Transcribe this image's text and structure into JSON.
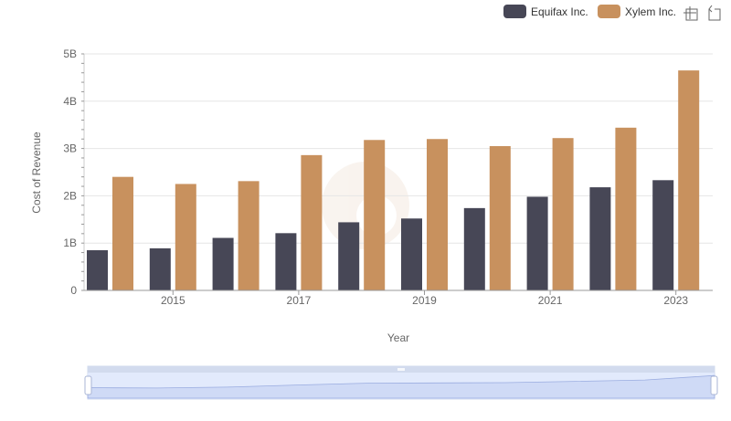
{
  "colors": {
    "equifax": "#474756",
    "xylem": "#c8915e",
    "grid": "#e6e6e6",
    "axis": "#999999"
  },
  "toolbar": {
    "icons": [
      "crosshair-zoom-icon",
      "zoom-reset-icon"
    ]
  },
  "chart_data": {
    "type": "bar",
    "xlabel": "Year",
    "ylabel": "Cost of Revenue",
    "categories": [
      "2014",
      "2015",
      "2016",
      "2017",
      "2018",
      "2019",
      "2020",
      "2021",
      "2022",
      "2023"
    ],
    "x_tick_labels": [
      "2015",
      "2017",
      "2019",
      "2021",
      "2023"
    ],
    "y_tick_labels": [
      "0",
      "1B",
      "2B",
      "3B",
      "4B",
      "5B"
    ],
    "ylim": [
      0,
      5000000000
    ],
    "grid": true,
    "legend_position": "top-right",
    "series": [
      {
        "name": "Equifax Inc.",
        "color": "#474756",
        "values": [
          850000000,
          890000000,
          1110000000,
          1210000000,
          1440000000,
          1520000000,
          1740000000,
          1980000000,
          2180000000,
          2330000000
        ]
      },
      {
        "name": "Xylem Inc.",
        "color": "#c8915e",
        "values": [
          2400000000,
          2250000000,
          2310000000,
          2860000000,
          3180000000,
          3200000000,
          3050000000,
          3220000000,
          3440000000,
          4650000000
        ]
      }
    ]
  }
}
